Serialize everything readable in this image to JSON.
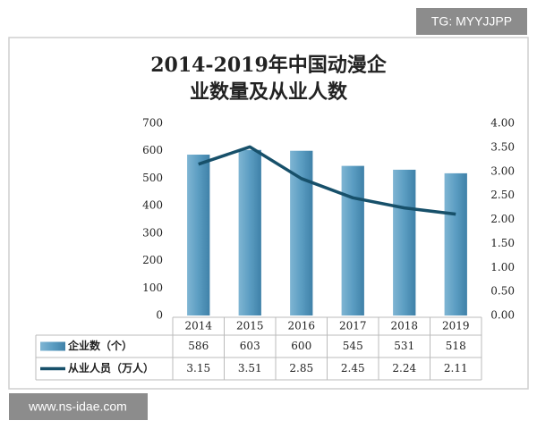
{
  "watermark": "TG: MYYJJPP",
  "website": "www.ns-idae.com",
  "chart_data": {
    "type": "combo",
    "title": "2014-2019年中国动漫企业数量及从业人数",
    "categories": [
      "2014",
      "2015",
      "2016",
      "2017",
      "2018",
      "2019"
    ],
    "series": [
      {
        "name": "企业数（个）",
        "type": "bar",
        "color": "#5b9dc2",
        "values": [
          586,
          603,
          600,
          545,
          531,
          518
        ]
      },
      {
        "name": "从业人员（万人）",
        "type": "line",
        "axis": "y2",
        "color": "#17506a",
        "values": [
          3.15,
          3.51,
          2.85,
          2.45,
          2.24,
          2.11
        ]
      }
    ],
    "ylim": [
      0,
      700
    ],
    "yticks": [
      0,
      100,
      200,
      300,
      400,
      500,
      600,
      700
    ],
    "y2lim": [
      0,
      4
    ],
    "y2ticks": [
      {
        "value": 0,
        "label": "0.00"
      },
      {
        "value": 0.5,
        "label": "0.50"
      },
      {
        "value": 1,
        "label": "1.00"
      },
      {
        "value": 1.5,
        "label": "1.50"
      },
      {
        "value": 2,
        "label": "2.00"
      },
      {
        "value": 2.5,
        "label": "2.50"
      },
      {
        "value": 3,
        "label": "3.00"
      },
      {
        "value": 3.5,
        "label": "3.50"
      },
      {
        "value": 4,
        "label": "4.00"
      }
    ],
    "grid": false
  }
}
